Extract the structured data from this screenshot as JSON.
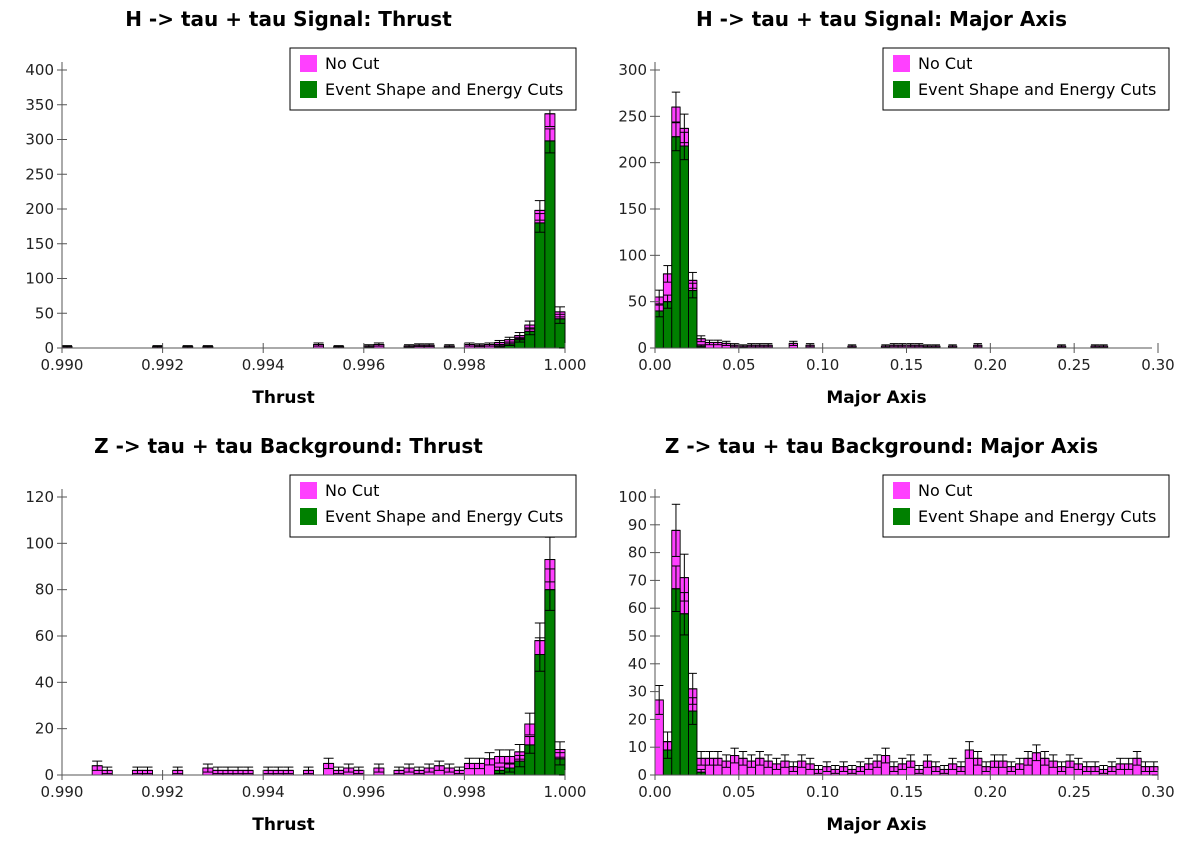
{
  "chart_data": [
    {
      "type": "bar",
      "title": "H -> tau + tau Signal: Thrust",
      "xlabel": "Thrust",
      "ylabel": "",
      "xlim": [
        0.99,
        1.0
      ],
      "ylim": [
        0,
        400
      ],
      "x_ticks": [
        "0.990",
        "0.992",
        "0.994",
        "0.996",
        "0.998",
        "1.000"
      ],
      "y_ticks": [
        "0",
        "50",
        "100",
        "150",
        "200",
        "250",
        "300",
        "350",
        "400"
      ],
      "legend_position": "top-right",
      "bin_width": 0.0002,
      "series": [
        {
          "name": "No Cut",
          "color": "#ff40ff",
          "x": [
            0.9901,
            0.9919,
            0.9925,
            0.9929,
            0.9951,
            0.9955,
            0.9961,
            0.9963,
            0.9969,
            0.9971,
            0.9973,
            0.9977,
            0.9981,
            0.9983,
            0.9985,
            0.9987,
            0.9989,
            0.9991,
            0.9993,
            0.9995,
            0.9997,
            0.9999
          ],
          "y": [
            2,
            2,
            2,
            2,
            5,
            2,
            3,
            5,
            3,
            4,
            4,
            3,
            5,
            4,
            5,
            8,
            12,
            18,
            33,
            198,
            337,
            52
          ]
        },
        {
          "name": "Event Shape and Energy Cuts",
          "color": "#008000",
          "x": [
            0.9987,
            0.9989,
            0.9991,
            0.9993,
            0.9995,
            0.9997,
            0.9999
          ],
          "y": [
            3,
            6,
            12,
            24,
            180,
            298,
            42
          ]
        }
      ]
    },
    {
      "type": "bar",
      "title": "H -> tau + tau Signal: Major Axis",
      "xlabel": "Major Axis",
      "ylabel": "",
      "xlim": [
        0.0,
        0.3
      ],
      "ylim": [
        0,
        300
      ],
      "x_ticks": [
        "0.00",
        "0.05",
        "0.10",
        "0.15",
        "0.20",
        "0.25",
        "0.30"
      ],
      "y_ticks": [
        "0",
        "50",
        "100",
        "150",
        "200",
        "250",
        "300"
      ],
      "legend_position": "top-right",
      "bin_width": 0.005,
      "series": [
        {
          "name": "No Cut",
          "color": "#ff40ff",
          "x": [
            0.0025,
            0.0075,
            0.0125,
            0.0175,
            0.0225,
            0.0275,
            0.0325,
            0.0375,
            0.0425,
            0.0475,
            0.0525,
            0.0575,
            0.0625,
            0.0675,
            0.0825,
            0.0925,
            0.1175,
            0.1375,
            0.1425,
            0.1475,
            0.1525,
            0.1575,
            0.1625,
            0.1675,
            0.1775,
            0.1925,
            0.2425,
            0.2625,
            0.2675
          ],
          "y": [
            55,
            80,
            260,
            237,
            73,
            10,
            6,
            6,
            5,
            3,
            2,
            3,
            3,
            3,
            5,
            3,
            2,
            2,
            3,
            3,
            3,
            3,
            2,
            2,
            2,
            3,
            2,
            2,
            2
          ]
        },
        {
          "name": "Event Shape and Energy Cuts",
          "color": "#008000",
          "x": [
            0.0025,
            0.0075,
            0.0125,
            0.0175,
            0.0225,
            0.0275
          ],
          "y": [
            40,
            50,
            228,
            218,
            62,
            2
          ]
        }
      ]
    },
    {
      "type": "bar",
      "title": "Z -> tau + tau Background: Thrust",
      "xlabel": "Thrust",
      "ylabel": "",
      "xlim": [
        0.99,
        1.0
      ],
      "ylim": [
        0,
        120
      ],
      "x_ticks": [
        "0.990",
        "0.992",
        "0.994",
        "0.996",
        "0.998",
        "1.000"
      ],
      "y_ticks": [
        "0",
        "20",
        "40",
        "60",
        "80",
        "100",
        "120"
      ],
      "legend_position": "top-right",
      "bin_width": 0.0002,
      "series": [
        {
          "name": "No Cut",
          "color": "#ff40ff",
          "x": [
            0.9907,
            0.9909,
            0.9915,
            0.9917,
            0.9923,
            0.9929,
            0.9931,
            0.9933,
            0.9935,
            0.9937,
            0.9941,
            0.9943,
            0.9945,
            0.9949,
            0.9953,
            0.9955,
            0.9957,
            0.9959,
            0.9963,
            0.9967,
            0.9969,
            0.9971,
            0.9973,
            0.9975,
            0.9977,
            0.9979,
            0.9981,
            0.9983,
            0.9985,
            0.9987,
            0.9989,
            0.9991,
            0.9993,
            0.9995,
            0.9997,
            0.9999
          ],
          "y": [
            4,
            2,
            2,
            2,
            2,
            3,
            2,
            2,
            2,
            2,
            2,
            2,
            2,
            2,
            5,
            2,
            3,
            2,
            3,
            2,
            3,
            2,
            3,
            4,
            3,
            2,
            5,
            5,
            7,
            8,
            8,
            10,
            22,
            58,
            93,
            11
          ]
        },
        {
          "name": "Event Shape and Energy Cuts",
          "color": "#008000",
          "x": [
            0.9987,
            0.9989,
            0.9991,
            0.9993,
            0.9995,
            0.9997,
            0.9999
          ],
          "y": [
            2,
            3,
            6,
            13,
            52,
            80,
            7
          ]
        }
      ]
    },
    {
      "type": "bar",
      "title": "Z -> tau + tau Background: Major Axis",
      "xlabel": "Major Axis",
      "ylabel": "",
      "xlim": [
        0.0,
        0.3
      ],
      "ylim": [
        0,
        100
      ],
      "x_ticks": [
        "0.00",
        "0.05",
        "0.10",
        "0.15",
        "0.20",
        "0.25",
        "0.30"
      ],
      "y_ticks": [
        "0",
        "10",
        "20",
        "30",
        "40",
        "50",
        "60",
        "70",
        "80",
        "90",
        "100"
      ],
      "legend_position": "top-right",
      "bin_width": 0.005,
      "series": [
        {
          "name": "No Cut",
          "color": "#ff40ff",
          "x": [
            0.0025,
            0.0075,
            0.0125,
            0.0175,
            0.0225,
            0.0275,
            0.0325,
            0.0375,
            0.0425,
            0.0475,
            0.0525,
            0.0575,
            0.0625,
            0.0675,
            0.0725,
            0.0775,
            0.0825,
            0.0875,
            0.0925,
            0.0975,
            0.1025,
            0.1075,
            0.1125,
            0.1175,
            0.1225,
            0.1275,
            0.1325,
            0.1375,
            0.1425,
            0.1475,
            0.1525,
            0.1575,
            0.1625,
            0.1675,
            0.1725,
            0.1775,
            0.1825,
            0.1875,
            0.1925,
            0.1975,
            0.2025,
            0.2075,
            0.2125,
            0.2175,
            0.2225,
            0.2275,
            0.2325,
            0.2375,
            0.2425,
            0.2475,
            0.2525,
            0.2575,
            0.2625,
            0.2675,
            0.2725,
            0.2775,
            0.2825,
            0.2875,
            0.2925,
            0.2975
          ],
          "y": [
            27,
            12,
            88,
            71,
            31,
            6,
            6,
            6,
            5,
            7,
            6,
            5,
            6,
            5,
            4,
            5,
            3,
            5,
            4,
            2,
            3,
            2,
            3,
            2,
            3,
            4,
            5,
            7,
            3,
            4,
            5,
            2,
            5,
            3,
            2,
            4,
            3,
            9,
            6,
            3,
            5,
            5,
            3,
            4,
            6,
            8,
            6,
            5,
            3,
            5,
            4,
            3,
            3,
            2,
            3,
            4,
            4,
            6,
            3,
            3
          ]
        },
        {
          "name": "Event Shape and Energy Cuts",
          "color": "#008000",
          "x": [
            0.0025,
            0.0075,
            0.0125,
            0.0175,
            0.0225,
            0.0275
          ],
          "y": [
            0,
            9,
            67,
            58,
            23,
            1
          ]
        }
      ]
    }
  ]
}
